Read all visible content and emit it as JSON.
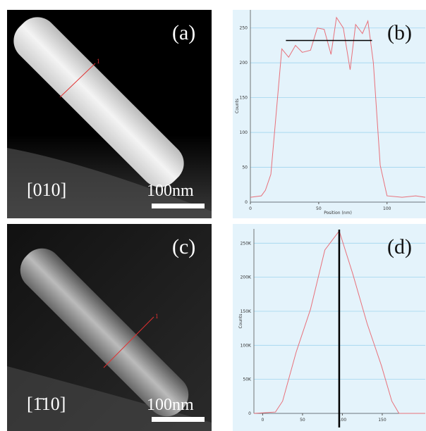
{
  "panels": [
    {
      "label": "(a)",
      "direction": "[010]",
      "scale_bar": "100nm",
      "profile_marker": "1"
    },
    {
      "label": "(c)",
      "direction": "[1̄10]",
      "scale_bar": "100nm",
      "profile_marker": "1"
    }
  ],
  "chart_data": [
    {
      "type": "line",
      "label": "(b)",
      "xlabel": "Position (nm)",
      "ylabel": "Counts",
      "color": "#e8707a",
      "x": [
        0,
        8,
        11,
        15,
        23,
        28,
        33,
        38,
        44,
        49,
        54,
        59,
        63,
        68,
        73,
        77,
        82,
        86,
        90,
        95,
        100,
        111,
        121,
        128
      ],
      "values": [
        7,
        9,
        17,
        40,
        220,
        208,
        225,
        215,
        218,
        250,
        248,
        212,
        265,
        250,
        190,
        255,
        242,
        260,
        200,
        53,
        9,
        7,
        9,
        7
      ],
      "xlim": [
        0,
        128
      ],
      "ylim": [
        0,
        276
      ],
      "xticks": [
        0,
        50,
        100
      ],
      "yticks": [
        0,
        50,
        100,
        150,
        200,
        250
      ],
      "grid": true,
      "marker_line": {
        "y": 232,
        "x": [
          26,
          89
        ]
      }
    },
    {
      "type": "line",
      "label": "(d)",
      "ylabel": "Counts",
      "color": "#e8707a",
      "x": [
        -11,
        16,
        25,
        42,
        60,
        78,
        96,
        113,
        131,
        149,
        162,
        171,
        204
      ],
      "values": [
        0,
        2000,
        18000,
        90000,
        153000,
        240000,
        268000,
        205000,
        132000,
        70000,
        18000,
        0,
        0
      ],
      "xlim": [
        -11,
        204
      ],
      "ylim": [
        0,
        271000
      ],
      "xticks": [
        0,
        50,
        100,
        150
      ],
      "yticks": [
        {
          "value": 0,
          "label": "0"
        },
        {
          "value": 50000,
          "label": "50K"
        },
        {
          "value": 100000,
          "label": "100K"
        },
        {
          "value": 150000,
          "label": "150K"
        },
        {
          "value": 200000,
          "label": "200K"
        },
        {
          "value": 250000,
          "label": "250K"
        }
      ],
      "grid": true,
      "marker_x": 96
    }
  ]
}
